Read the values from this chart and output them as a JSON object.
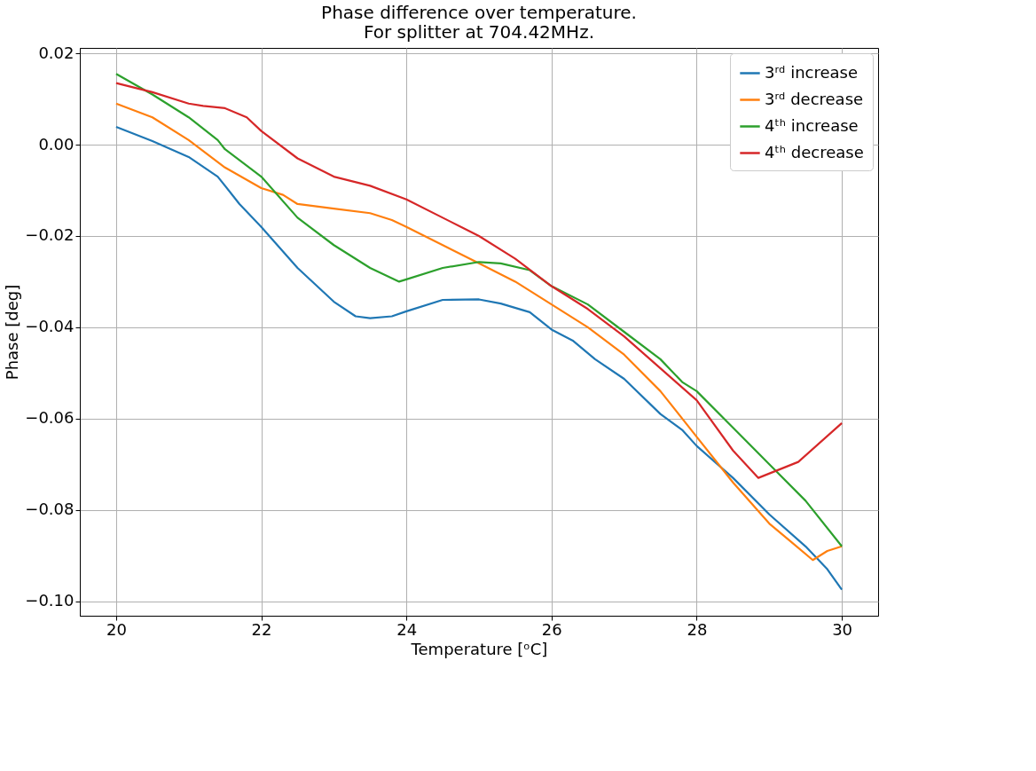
{
  "chart_data": {
    "type": "line",
    "title": "Phase difference over temperature.\nFor splitter at 704.42MHz.",
    "xlabel": "Temperature [ᵒC]",
    "ylabel": "Phase [deg]",
    "series": [
      {
        "name": "3ʳᵈ increase",
        "color": "#1f77b4",
        "x": [
          20,
          20.5,
          21,
          21.4,
          21.7,
          22,
          22.5,
          23,
          23.3,
          23.5,
          23.8,
          24,
          24.5,
          25,
          25.3,
          25.7,
          26,
          26.3,
          26.6,
          27,
          27.5,
          27.8,
          28,
          28.5,
          29,
          29.5,
          29.8,
          30
        ],
        "values": [
          0.0039,
          0.0008,
          -0.0027,
          -0.007,
          -0.013,
          -0.018,
          -0.027,
          -0.0344,
          -0.0376,
          -0.038,
          -0.0376,
          -0.0365,
          -0.034,
          -0.0339,
          -0.0348,
          -0.0367,
          -0.0405,
          -0.043,
          -0.047,
          -0.0513,
          -0.059,
          -0.0625,
          -0.066,
          -0.073,
          -0.081,
          -0.088,
          -0.093,
          -0.0975
        ]
      },
      {
        "name": "3ʳᵈ decrease",
        "color": "#ff7f0e",
        "x": [
          20,
          20.5,
          21,
          21.5,
          22,
          22.3,
          22.5,
          23,
          23.5,
          23.8,
          24,
          24.5,
          25,
          25.5,
          26,
          26.5,
          27,
          27.5,
          28,
          28.5,
          29,
          29.3,
          29.6,
          29.8,
          30
        ],
        "values": [
          0.009,
          0.006,
          0.001,
          -0.005,
          -0.0095,
          -0.011,
          -0.013,
          -0.014,
          -0.015,
          -0.0165,
          -0.018,
          -0.022,
          -0.026,
          -0.03,
          -0.035,
          -0.04,
          -0.046,
          -0.054,
          -0.064,
          -0.074,
          -0.083,
          -0.087,
          -0.091,
          -0.089,
          -0.088
        ]
      },
      {
        "name": "4ᵗʰ increase",
        "color": "#2ca02c",
        "x": [
          20,
          20.5,
          21,
          21.4,
          21.5,
          22,
          22.5,
          23,
          23.5,
          23.9,
          24,
          24.5,
          25,
          25.3,
          25.7,
          26,
          26.5,
          27,
          27.5,
          27.8,
          28,
          28.5,
          29,
          29.5,
          30
        ],
        "values": [
          0.0155,
          0.011,
          0.006,
          0.001,
          -0.001,
          -0.007,
          -0.016,
          -0.022,
          -0.027,
          -0.03,
          -0.0295,
          -0.027,
          -0.0257,
          -0.026,
          -0.0275,
          -0.031,
          -0.035,
          -0.041,
          -0.047,
          -0.052,
          -0.054,
          -0.062,
          -0.07,
          -0.078,
          -0.088
        ]
      },
      {
        "name": "4ᵗʰ decrease",
        "color": "#d62728",
        "x": [
          20,
          20.5,
          21,
          21.2,
          21.5,
          21.8,
          22,
          22.5,
          23,
          23.5,
          24,
          24.5,
          25,
          25.5,
          26,
          26.5,
          27,
          27.5,
          28,
          28.5,
          28.85,
          29.4,
          30
        ],
        "values": [
          0.0135,
          0.0115,
          0.009,
          0.0085,
          0.008,
          0.006,
          0.003,
          -0.003,
          -0.007,
          -0.009,
          -0.012,
          -0.016,
          -0.02,
          -0.025,
          -0.031,
          -0.036,
          -0.042,
          -0.049,
          -0.056,
          -0.067,
          -0.073,
          -0.0695,
          -0.061
        ]
      }
    ],
    "xlim": [
      19.5,
      30.5
    ],
    "xticks": [
      20,
      22,
      24,
      26,
      28,
      30
    ],
    "ylim": [
      -0.1032,
      0.0212
    ],
    "yticks": [
      {
        "value": -0.1,
        "label": "−0.10"
      },
      {
        "value": -0.08,
        "label": "−0.08"
      },
      {
        "value": -0.06,
        "label": "−0.06"
      },
      {
        "value": -0.04,
        "label": "−0.04"
      },
      {
        "value": -0.02,
        "label": "−0.02"
      },
      {
        "value": 0,
        "label": "0.00"
      },
      {
        "value": 0.02,
        "label": "0.02"
      }
    ],
    "grid": true,
    "legend": "top right",
    "line_style": "solid",
    "marker": "none"
  }
}
